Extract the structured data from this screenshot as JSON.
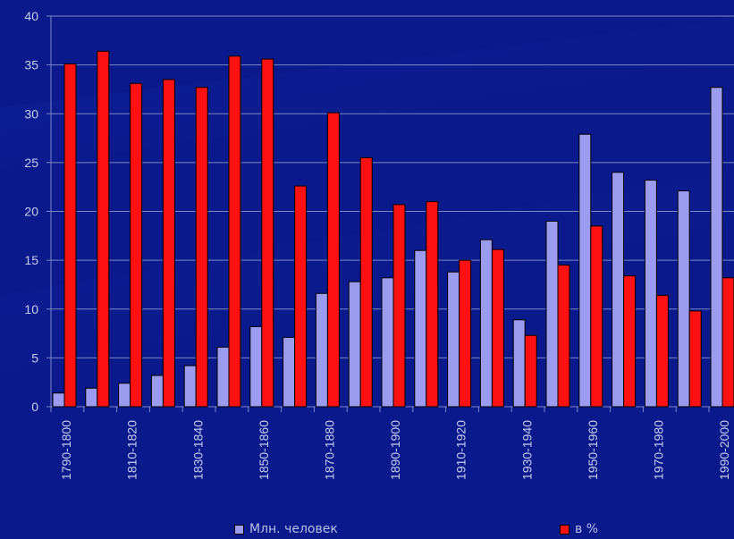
{
  "colors": {
    "background": "#0a1a8c",
    "series1": "#9b9cf0",
    "series2": "#ff1111",
    "grid": "#7d86c8",
    "text": "#c8cdf0"
  },
  "chart_data": {
    "type": "bar",
    "ylim": [
      0,
      40
    ],
    "yticks": [
      0,
      5,
      10,
      15,
      20,
      25,
      30,
      35,
      40
    ],
    "grid": true,
    "legend_position": "bottom",
    "categories": [
      "1790-1800",
      "1800-1810",
      "1810-1820",
      "1820-1830",
      "1830-1840",
      "1840-1850",
      "1850-1860",
      "1860-1870",
      "1870-1880",
      "1880-1890",
      "1890-1900",
      "1900-1910",
      "1910-1920",
      "1920-1930",
      "1930-1940",
      "1940-1950",
      "1950-1960",
      "1960-1970",
      "1970-1980",
      "1980-1990",
      "1990-2000"
    ],
    "tick_labels": {
      "0": "1790-1800",
      "2": "1810-1820",
      "4": "1830-1840",
      "6": "1850-1860",
      "8": "1870-1880",
      "10": "1890-1900",
      "12": "1910-1920",
      "14": "1930-1940",
      "16": "1950-1960",
      "18": "1970-1980",
      "20": "1990-2000"
    },
    "series": [
      {
        "name": "Млн. человек",
        "values": [
          1.4,
          1.9,
          2.4,
          3.2,
          4.2,
          6.1,
          8.2,
          7.1,
          11.6,
          12.8,
          13.2,
          16.0,
          13.8,
          17.1,
          8.9,
          19.0,
          27.9,
          24.0,
          23.2,
          22.1,
          32.7
        ]
      },
      {
        "name": "в %",
        "values": [
          35.1,
          36.4,
          33.1,
          33.5,
          32.7,
          35.9,
          35.6,
          22.6,
          30.1,
          25.5,
          20.7,
          21.0,
          15.0,
          16.1,
          7.3,
          14.5,
          18.5,
          13.4,
          11.4,
          9.8,
          13.2
        ]
      }
    ]
  }
}
